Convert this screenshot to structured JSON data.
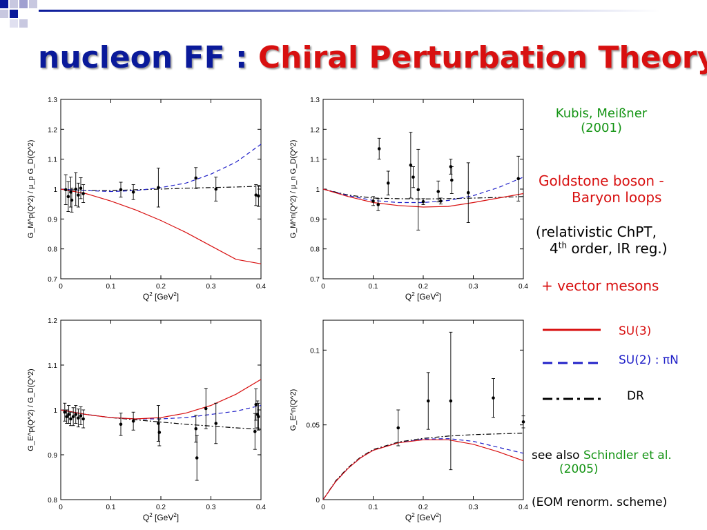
{
  "title": {
    "part1": "nucleon FF :",
    "part2": "Chiral Perturbation Theory"
  },
  "side": {
    "ref1_line1": "Kubis, Meißner",
    "ref1_line2": "(2001)",
    "loops_line1": "Goldstone boson -",
    "loops_line2": "Baryon loops",
    "chpt_line1": "(relativistic ChPT,",
    "chpt_line2_a": "4",
    "chpt_line2_sup": "th",
    "chpt_line2_b": " order, IR reg.)",
    "vm": "+  vector mesons",
    "legend_su3": "SU(3)",
    "legend_su2": "SU(2) : πN",
    "legend_dr": "DR",
    "see_also": "see also",
    "see_also_ref": "Schindler et al.",
    "see_also_year": "(2005)",
    "eom": "(EOM renorm. scheme)"
  },
  "colors": {
    "title_blue": "#0a1a9a",
    "red": "#d81010",
    "blue": "#2020c8",
    "green": "#149414"
  },
  "chart_data": [
    {
      "id": "gmp",
      "type": "scatter",
      "xlabel_main": "Q",
      "xlabel_sup": "2",
      "xlabel_unit": " [GeV",
      "xlabel_unit_sup": "2",
      "xlabel_end": "]",
      "ylabel": "G_M^p(Q^2) / μ_p G_D(Q^2)",
      "xlim": [
        0,
        0.4
      ],
      "ylim": [
        0.7,
        1.3
      ],
      "xticks": [
        0,
        0.1,
        0.2,
        0.3,
        0.4
      ],
      "xtick_labels": [
        "0",
        "0.1",
        "0.2",
        "0.3",
        "0.4"
      ],
      "yticks": [
        0.7,
        0.8,
        0.9,
        1.0,
        1.1,
        1.2,
        1.3
      ],
      "ytick_labels": [
        "0.7",
        "0.8",
        "0.9",
        "1",
        "1.1",
        "1.2",
        "1.3"
      ],
      "points": [
        {
          "x": 0.01,
          "y": 0.998,
          "err": 0.05
        },
        {
          "x": 0.015,
          "y": 0.975,
          "err": 0.05
        },
        {
          "x": 0.02,
          "y": 0.99,
          "err": 0.05
        },
        {
          "x": 0.022,
          "y": 0.963,
          "err": 0.04
        },
        {
          "x": 0.03,
          "y": 1.0,
          "err": 0.055
        },
        {
          "x": 0.035,
          "y": 0.98,
          "err": 0.04
        },
        {
          "x": 0.04,
          "y": 1.003,
          "err": 0.035
        },
        {
          "x": 0.045,
          "y": 0.985,
          "err": 0.03
        },
        {
          "x": 0.12,
          "y": 0.998,
          "err": 0.025
        },
        {
          "x": 0.145,
          "y": 0.99,
          "err": 0.025
        },
        {
          "x": 0.195,
          "y": 1.005,
          "err": 0.065
        },
        {
          "x": 0.27,
          "y": 1.037,
          "err": 0.035
        },
        {
          "x": 0.31,
          "y": 1.0,
          "err": 0.04
        },
        {
          "x": 0.39,
          "y": 0.98,
          "err": 0.035
        },
        {
          "x": 0.395,
          "y": 0.977,
          "err": 0.035
        }
      ],
      "curves": {
        "su3": {
          "x": [
            0,
            0.05,
            0.1,
            0.15,
            0.2,
            0.25,
            0.3,
            0.35,
            0.4
          ],
          "y": [
            1.0,
            0.985,
            0.96,
            0.93,
            0.895,
            0.855,
            0.81,
            0.765,
            0.75
          ]
        },
        "su2": {
          "x": [
            0,
            0.05,
            0.1,
            0.15,
            0.2,
            0.25,
            0.3,
            0.35,
            0.4
          ],
          "y": [
            1.0,
            0.995,
            0.992,
            0.995,
            1.005,
            1.02,
            1.05,
            1.09,
            1.15
          ]
        },
        "dr": {
          "x": [
            0,
            0.05,
            0.1,
            0.15,
            0.2,
            0.25,
            0.3,
            0.35,
            0.4
          ],
          "y": [
            1.0,
            0.995,
            0.995,
            0.998,
            1.0,
            1.003,
            1.005,
            1.007,
            1.01
          ]
        }
      }
    },
    {
      "id": "gmn",
      "type": "scatter",
      "xlabel_main": "Q",
      "xlabel_sup": "2",
      "xlabel_unit": " [GeV",
      "xlabel_unit_sup": "2",
      "xlabel_end": "]",
      "ylabel": "G_M^n(Q^2) / μ_n G_D(Q^2)",
      "xlim": [
        0,
        0.4
      ],
      "ylim": [
        0.7,
        1.3
      ],
      "xticks": [
        0,
        0.1,
        0.2,
        0.3,
        0.4
      ],
      "xtick_labels": [
        "0",
        "0.1",
        "0.2",
        "0.3",
        "0.4"
      ],
      "yticks": [
        0.7,
        0.8,
        0.9,
        1.0,
        1.1,
        1.2,
        1.3
      ],
      "ytick_labels": [
        "0.7",
        "0.8",
        "0.9",
        "1",
        "1.1",
        "1.2",
        "1.3"
      ],
      "points": [
        {
          "x": 0.1,
          "y": 0.96,
          "err": 0.015
        },
        {
          "x": 0.11,
          "y": 0.948,
          "err": 0.02
        },
        {
          "x": 0.112,
          "y": 1.135,
          "err": 0.035
        },
        {
          "x": 0.13,
          "y": 1.02,
          "err": 0.04
        },
        {
          "x": 0.175,
          "y": 1.08,
          "err": 0.11
        },
        {
          "x": 0.18,
          "y": 1.04,
          "err": 0.035
        },
        {
          "x": 0.19,
          "y": 0.998,
          "err": 0.135
        },
        {
          "x": 0.2,
          "y": 0.958,
          "err": 0.01
        },
        {
          "x": 0.23,
          "y": 0.992,
          "err": 0.035
        },
        {
          "x": 0.235,
          "y": 0.96,
          "err": 0.01
        },
        {
          "x": 0.255,
          "y": 1.075,
          "err": 0.025
        },
        {
          "x": 0.257,
          "y": 1.03,
          "err": 0.045
        },
        {
          "x": 0.29,
          "y": 0.988,
          "err": 0.1
        },
        {
          "x": 0.39,
          "y": 1.035,
          "err": 0.075
        }
      ],
      "curves": {
        "su3": {
          "x": [
            0,
            0.05,
            0.1,
            0.15,
            0.2,
            0.25,
            0.3,
            0.35,
            0.4
          ],
          "y": [
            1.0,
            0.975,
            0.955,
            0.945,
            0.94,
            0.942,
            0.955,
            0.97,
            0.985
          ]
        },
        "su2": {
          "x": [
            0,
            0.05,
            0.1,
            0.15,
            0.2,
            0.25,
            0.3,
            0.35,
            0.4
          ],
          "y": [
            1.0,
            0.978,
            0.962,
            0.955,
            0.955,
            0.962,
            0.978,
            1.005,
            1.04
          ]
        },
        "dr": {
          "x": [
            0,
            0.05,
            0.1,
            0.15,
            0.2,
            0.25,
            0.3,
            0.35,
            0.4
          ],
          "y": [
            1.0,
            0.98,
            0.97,
            0.968,
            0.967,
            0.968,
            0.97,
            0.972,
            0.975
          ]
        }
      }
    },
    {
      "id": "gep",
      "type": "scatter",
      "xlabel_main": "Q",
      "xlabel_sup": "2",
      "xlabel_unit": " [GeV",
      "xlabel_unit_sup": "2",
      "xlabel_end": "]",
      "ylabel": "G_E^p(Q^2) / G_D(Q^2)",
      "xlim": [
        0,
        0.4
      ],
      "ylim": [
        0.8,
        1.2
      ],
      "xticks": [
        0,
        0.1,
        0.2,
        0.3,
        0.4
      ],
      "xtick_labels": [
        "0",
        "0.1",
        "0.2",
        "0.3",
        "0.4"
      ],
      "yticks": [
        0.8,
        0.9,
        1.0,
        1.1,
        1.2
      ],
      "ytick_labels": [
        "0.8",
        "0.9",
        "1",
        "1.1",
        "1.2"
      ],
      "points": [
        {
          "x": 0.008,
          "y": 0.995,
          "err": 0.02
        },
        {
          "x": 0.012,
          "y": 0.985,
          "err": 0.015
        },
        {
          "x": 0.016,
          "y": 0.99,
          "err": 0.02
        },
        {
          "x": 0.02,
          "y": 0.98,
          "err": 0.015
        },
        {
          "x": 0.025,
          "y": 0.985,
          "err": 0.02
        },
        {
          "x": 0.03,
          "y": 0.99,
          "err": 0.02
        },
        {
          "x": 0.035,
          "y": 0.982,
          "err": 0.02
        },
        {
          "x": 0.04,
          "y": 0.987,
          "err": 0.02
        },
        {
          "x": 0.045,
          "y": 0.98,
          "err": 0.02
        },
        {
          "x": 0.12,
          "y": 0.968,
          "err": 0.025
        },
        {
          "x": 0.145,
          "y": 0.975,
          "err": 0.02
        },
        {
          "x": 0.195,
          "y": 0.97,
          "err": 0.04
        },
        {
          "x": 0.197,
          "y": 0.95,
          "err": 0.03
        },
        {
          "x": 0.27,
          "y": 0.958,
          "err": 0.03
        },
        {
          "x": 0.272,
          "y": 0.893,
          "err": 0.05
        },
        {
          "x": 0.29,
          "y": 1.003,
          "err": 0.045
        },
        {
          "x": 0.31,
          "y": 0.97,
          "err": 0.045
        },
        {
          "x": 0.388,
          "y": 0.952,
          "err": 0.04
        },
        {
          "x": 0.39,
          "y": 1.012,
          "err": 0.035
        },
        {
          "x": 0.393,
          "y": 0.99,
          "err": 0.03
        },
        {
          "x": 0.395,
          "y": 0.985,
          "err": 0.03
        }
      ],
      "curves": {
        "su3": {
          "x": [
            0,
            0.05,
            0.1,
            0.15,
            0.2,
            0.25,
            0.3,
            0.35,
            0.4
          ],
          "y": [
            1.0,
            0.99,
            0.983,
            0.98,
            0.983,
            0.993,
            1.01,
            1.035,
            1.068
          ]
        },
        "su2": {
          "x": [
            0,
            0.05,
            0.1,
            0.15,
            0.2,
            0.25,
            0.3,
            0.35,
            0.4
          ],
          "y": [
            1.0,
            0.99,
            0.983,
            0.98,
            0.98,
            0.983,
            0.99,
            0.997,
            1.01
          ]
        },
        "dr": {
          "x": [
            0,
            0.05,
            0.1,
            0.15,
            0.2,
            0.25,
            0.3,
            0.35,
            0.4
          ],
          "y": [
            1.0,
            0.99,
            0.983,
            0.978,
            0.973,
            0.968,
            0.964,
            0.96,
            0.957
          ]
        }
      }
    },
    {
      "id": "gen",
      "type": "scatter",
      "xlabel_main": "Q",
      "xlabel_sup": "2",
      "xlabel_unit": " [GeV",
      "xlabel_unit_sup": "2",
      "xlabel_end": "]",
      "ylabel": "G_E^n(Q^2)",
      "xlim": [
        0,
        0.4
      ],
      "ylim": [
        0,
        0.12
      ],
      "xticks": [
        0,
        0.1,
        0.2,
        0.3,
        0.4
      ],
      "xtick_labels": [
        "0",
        "0.1",
        "0.2",
        "0.3",
        "0.4"
      ],
      "yticks": [
        0,
        0.05,
        0.1
      ],
      "ytick_labels": [
        "0",
        "0.05",
        "0.1"
      ],
      "points": [
        {
          "x": 0.15,
          "y": 0.048,
          "err": 0.012
        },
        {
          "x": 0.21,
          "y": 0.066,
          "err": 0.019
        },
        {
          "x": 0.255,
          "y": 0.066,
          "err": 0.046
        },
        {
          "x": 0.34,
          "y": 0.068,
          "err": 0.013
        },
        {
          "x": 0.4,
          "y": 0.052,
          "err": 0.004
        }
      ],
      "curves": {
        "su3": {
          "x": [
            0,
            0.025,
            0.05,
            0.075,
            0.1,
            0.15,
            0.2,
            0.25,
            0.3,
            0.35,
            0.4
          ],
          "y": [
            0,
            0.012,
            0.021,
            0.028,
            0.033,
            0.038,
            0.04,
            0.04,
            0.037,
            0.032,
            0.026
          ]
        },
        "su2": {
          "x": [
            0,
            0.025,
            0.05,
            0.075,
            0.1,
            0.15,
            0.2,
            0.25,
            0.3,
            0.35,
            0.4
          ],
          "y": [
            0,
            0.012,
            0.021,
            0.028,
            0.033,
            0.038,
            0.0405,
            0.0408,
            0.039,
            0.035,
            0.031
          ]
        },
        "dr": {
          "x": [
            0,
            0.025,
            0.05,
            0.075,
            0.1,
            0.15,
            0.2,
            0.25,
            0.3,
            0.35,
            0.4
          ],
          "y": [
            0,
            0.0125,
            0.0215,
            0.0285,
            0.0335,
            0.0385,
            0.041,
            0.0425,
            0.0435,
            0.044,
            0.0445
          ]
        }
      }
    }
  ]
}
